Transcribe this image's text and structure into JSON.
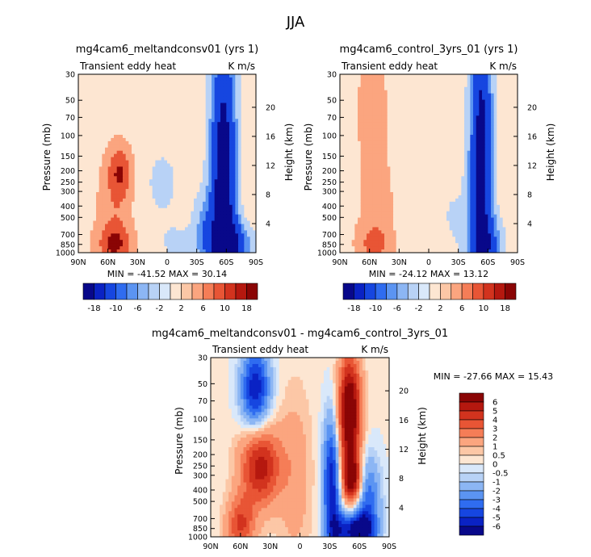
{
  "page_title": "JJA",
  "colors": {
    "blue_ramp": [
      "#08088a",
      "#0a22c4",
      "#1646e0",
      "#2f6cf0",
      "#5b94f2",
      "#8cb6f4",
      "#b8d2f6",
      "#d9e8fa"
    ],
    "red_ramp": [
      "#fde6d2",
      "#fcc7a6",
      "#fba57f",
      "#f57d57",
      "#e85535",
      "#d2331e",
      "#b5180f",
      "#8a0505"
    ]
  },
  "chart_data": [
    {
      "id": "panel-melt",
      "type": "heatmap",
      "title": "mg4cam6_meltandconsv01 (yrs 1)",
      "field_label": "Transient eddy heat",
      "units_label": "K m/s",
      "ylabel": "Pressure (mb)",
      "y2label": "Height (km)",
      "x_ticks": [
        "90N",
        "60N",
        "30N",
        "0",
        "30S",
        "60S",
        "90S"
      ],
      "y_ticks": [
        "30",
        "50",
        "70",
        "100",
        "150",
        "200",
        "250",
        "300",
        "400",
        "500",
        "700",
        "850",
        "1000"
      ],
      "y2_ticks": [
        "20",
        "16",
        "12",
        "8",
        "4"
      ],
      "xlim": [
        90,
        -90
      ],
      "ylim": [
        1000,
        30
      ],
      "stats": "MIN = -41.52   MAX =  30.14",
      "levels": [
        -18,
        -10,
        -6,
        -2,
        2,
        6,
        10,
        18
      ],
      "colorbar_labels": [
        "-18",
        "-10",
        "-6",
        "-2",
        "2",
        "6",
        "10",
        "18"
      ],
      "field": {
        "background": 0.8,
        "blobs": [
          {
            "lat": 48,
            "p": 200,
            "sl": 9,
            "sp": 0.35,
            "a": 9
          },
          {
            "lat": 53,
            "p": 850,
            "sl": 12,
            "sp": 0.28,
            "a": 10
          },
          {
            "lat": 52,
            "p": 400,
            "sl": 12,
            "sp": 0.45,
            "a": 4
          },
          {
            "lat": -57,
            "p": 300,
            "sl": 9,
            "sp": 2.2,
            "a": -26
          },
          {
            "lat": -65,
            "p": 850,
            "sl": 14,
            "sp": 0.3,
            "a": -16
          },
          {
            "lat": -38,
            "p": 600,
            "sl": 8,
            "sp": 0.5,
            "a": -7
          },
          {
            "lat": 5,
            "p": 250,
            "sl": 18,
            "sp": 0.7,
            "a": -3.5
          },
          {
            "lat": -15,
            "p": 900,
            "sl": 20,
            "sp": 0.35,
            "a": -3
          }
        ]
      }
    },
    {
      "id": "panel-control",
      "type": "heatmap",
      "title": "mg4cam6_control_3yrs_01 (yrs 1)",
      "field_label": "Transient eddy heat",
      "units_label": "K m/s",
      "ylabel": "Pressure (mb)",
      "y2label": "Height (km)",
      "x_ticks": [
        "90N",
        "60N",
        "30N",
        "0",
        "30S",
        "60S",
        "90S"
      ],
      "y_ticks": [
        "30",
        "50",
        "70",
        "100",
        "150",
        "200",
        "250",
        "300",
        "400",
        "500",
        "700",
        "850",
        "1000"
      ],
      "y2_ticks": [
        "20",
        "16",
        "12",
        "8",
        "4"
      ],
      "xlim": [
        90,
        -90
      ],
      "ylim": [
        1000,
        30
      ],
      "stats": "MIN = -24.12   MAX =  13.12",
      "levels": [
        -18,
        -10,
        -6,
        -2,
        2,
        6,
        10,
        18
      ],
      "colorbar_labels": [
        "-18",
        "-10",
        "-6",
        "-2",
        "2",
        "6",
        "10",
        "18"
      ],
      "field": {
        "background": 0.9,
        "blobs": [
          {
            "lat": 57,
            "p": 60,
            "sl": 9,
            "sp": 0.6,
            "a": 4.5
          },
          {
            "lat": 55,
            "p": 850,
            "sl": 11,
            "sp": 0.3,
            "a": 7
          },
          {
            "lat": 50,
            "p": 300,
            "sl": 13,
            "sp": 0.6,
            "a": 3
          },
          {
            "lat": -53,
            "p": 150,
            "sl": 8,
            "sp": 2.4,
            "a": -22
          },
          {
            "lat": -60,
            "p": 850,
            "sl": 12,
            "sp": 0.4,
            "a": -10
          },
          {
            "lat": -25,
            "p": 500,
            "sl": 14,
            "sp": 0.8,
            "a": -3
          },
          {
            "lat": 15,
            "p": 200,
            "sl": 16,
            "sp": 0.8,
            "a": -2.5
          }
        ]
      }
    },
    {
      "id": "panel-diff",
      "type": "heatmap",
      "title": "mg4cam6_meltandconsv01 - mg4cam6_control_3yrs_01",
      "field_label": "Transient eddy heat",
      "units_label": "K m/s",
      "ylabel": "Pressure (mb)",
      "y2label": "Height (km)",
      "x_ticks": [
        "90N",
        "60N",
        "30N",
        "0",
        "30S",
        "60S",
        "90S"
      ],
      "y_ticks": [
        "30",
        "50",
        "70",
        "100",
        "150",
        "200",
        "250",
        "300",
        "400",
        "500",
        "700",
        "850",
        "1000"
      ],
      "y2_ticks": [
        "20",
        "16",
        "12",
        "8",
        "4"
      ],
      "xlim": [
        90,
        -90
      ],
      "ylim": [
        1000,
        30
      ],
      "stats": "MIN = -27.66   MAX =  15.43",
      "levels": [
        -6,
        -5,
        -4,
        -3,
        -2,
        -1,
        -0.5,
        0,
        0.5,
        1,
        2,
        3,
        4,
        5,
        6
      ],
      "colorbar_labels": [
        "6",
        "5",
        "4",
        "3",
        "2",
        "1",
        "0.5",
        "0",
        "-0.5",
        "-1",
        "-2",
        "-3",
        "-4",
        "-5",
        "-6"
      ],
      "field": {
        "background": 0.1,
        "blobs": [
          {
            "lat": 45,
            "p": 55,
            "sl": 10,
            "sp": 0.55,
            "a": -6
          },
          {
            "lat": 40,
            "p": 250,
            "sl": 14,
            "sp": 0.55,
            "a": 5.5
          },
          {
            "lat": 60,
            "p": 800,
            "sl": 10,
            "sp": 0.4,
            "a": 4
          },
          {
            "lat": 5,
            "p": 300,
            "sl": 12,
            "sp": 1.2,
            "a": 1.5
          },
          {
            "lat": -50,
            "p": 90,
            "sl": 8,
            "sp": 0.8,
            "a": 8
          },
          {
            "lat": -53,
            "p": 330,
            "sl": 7,
            "sp": 0.35,
            "a": 6
          },
          {
            "lat": -32,
            "p": 350,
            "sl": 6,
            "sp": 0.9,
            "a": -6
          },
          {
            "lat": -68,
            "p": 500,
            "sl": 9,
            "sp": 0.6,
            "a": -4
          },
          {
            "lat": -60,
            "p": 900,
            "sl": 10,
            "sp": 0.25,
            "a": -7
          },
          {
            "lat": -40,
            "p": 900,
            "sl": 8,
            "sp": 0.3,
            "a": -4
          }
        ]
      }
    }
  ]
}
